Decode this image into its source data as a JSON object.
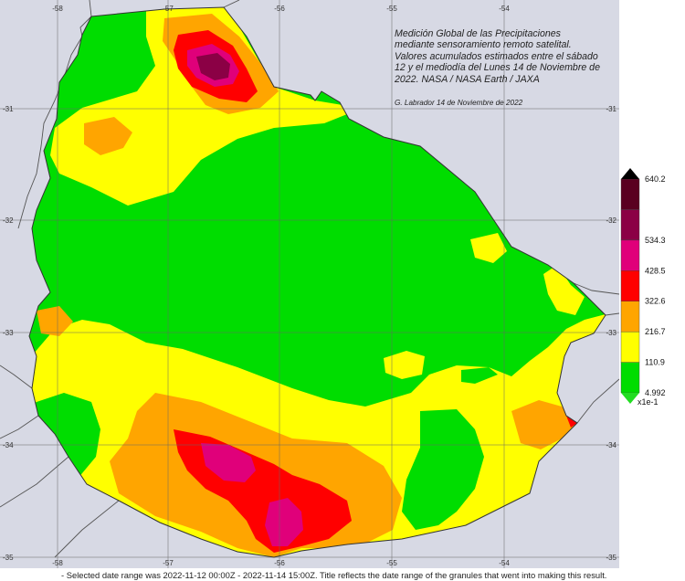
{
  "map": {
    "title_lines": [
      "Medición Global de las Precipitaciones",
      "mediante sensoramiento remoto satelital.",
      "Valores acumulados estimados entre el sábado",
      "12 y el mediodía del Lunes 14 de Noviembre de",
      "2022. NASA / NASA Earth / JAXA"
    ],
    "credit": "G. Labrador 14 de Noviembre de 2022",
    "longitude_ticks": [
      "-58",
      "-57",
      "-56",
      "-55",
      "-54"
    ],
    "latitude_ticks": [
      "-31",
      "-32",
      "-33",
      "-34",
      "-35"
    ],
    "region": "Uruguay"
  },
  "legend": {
    "levels": [
      "4.992",
      "110.9",
      "216.7",
      "322.6",
      "428.5",
      "534.3",
      "640.2"
    ],
    "units_label": "x1e-1",
    "colors": [
      "#00dd00",
      "#ffff00",
      "#ffa500",
      "#ff0000",
      "#e0007a",
      "#8b0045",
      "#5a0020"
    ],
    "extend_max_color": "#000000",
    "extend_min_color": "#22dd22"
  },
  "footer": {
    "note": "- Selected date range was 2022-11-12 00:00Z - 2022-11-14 15:00Z. Title reflects the date range of the granules that went into making this result."
  }
}
